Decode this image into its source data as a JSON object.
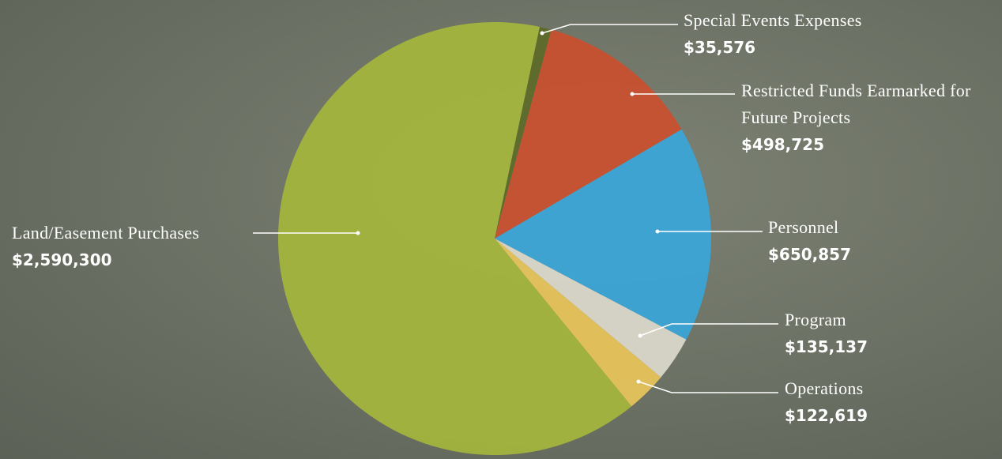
{
  "chart_data": {
    "type": "pie",
    "categories": [
      "Special Events Expenses",
      "Restricted Funds Earmarked for Future Projects",
      "Personnel",
      "Program",
      "Operations",
      "Land/Easement Purchases"
    ],
    "values": [
      35576,
      498725,
      650857,
      135137,
      122619,
      2590300
    ],
    "value_labels": [
      "$35,576",
      "$498,725",
      "$650,857",
      "$135,137",
      "$122,619",
      "$2,590,300"
    ],
    "colors": [
      "#5c6a28",
      "#c9502e",
      "#3aa6d8",
      "#dcd9cb",
      "#e8c55a",
      "#a5b63c"
    ]
  }
}
